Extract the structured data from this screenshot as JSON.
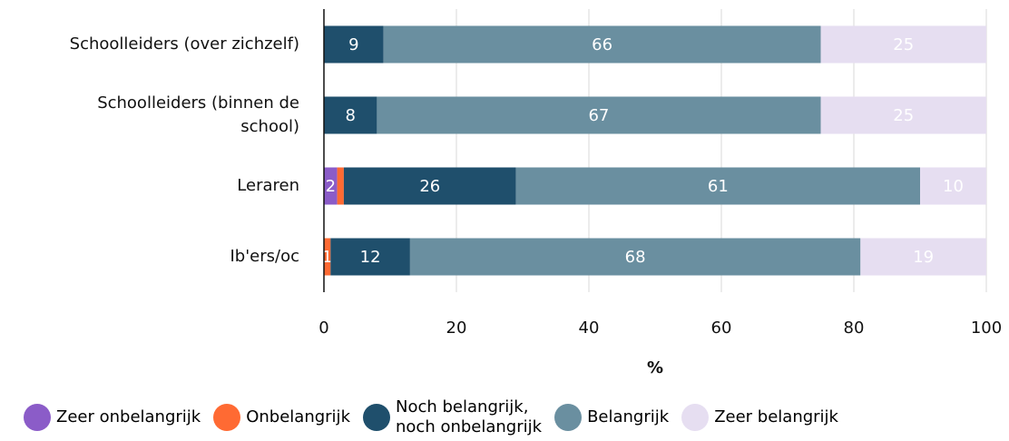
{
  "chart_data": {
    "type": "stacked-barh",
    "categories": [
      "Schoolleiders (over zichzelf)",
      "Schoolleiders (binnen de\nschool)",
      "Leraren",
      "Ib'ers/oc"
    ],
    "series": [
      {
        "name": "Zeer onbelangrijk",
        "color": "#8b5cc8",
        "values": [
          null,
          null,
          2,
          null
        ]
      },
      {
        "name": "Onbelangrijk",
        "color": "#ff6a33",
        "values": [
          null,
          null,
          1,
          1
        ],
        "value_labels": [
          null,
          null,
          null,
          "1"
        ]
      },
      {
        "name": "Noch belangrijk,\nnoch onbelangrijk",
        "color": "#1f4f6c",
        "values": [
          9,
          8,
          26,
          12
        ]
      },
      {
        "name": "Belangrijk",
        "color": "#6a8fa0",
        "values": [
          66,
          67,
          61,
          68
        ]
      },
      {
        "name": "Zeer belangrijk",
        "color": "#e6def1",
        "values": [
          25,
          25,
          10,
          19
        ]
      }
    ],
    "xlabel": "%",
    "xlim": [
      0,
      100
    ],
    "xticks": [
      0,
      20,
      40,
      60,
      80,
      100
    ],
    "grid": true
  }
}
